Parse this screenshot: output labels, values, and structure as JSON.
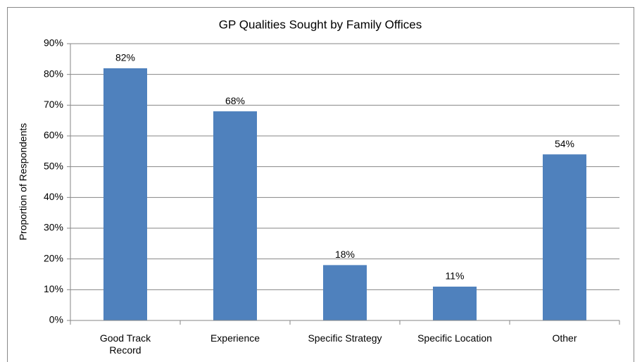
{
  "chart_data": {
    "type": "bar",
    "title": "GP Qualities Sought by Family Offices",
    "y_label": "Proportion of Respondents",
    "categories": [
      "Good Track Record",
      "Experience",
      "Specific Strategy",
      "Specific Location",
      "Other"
    ],
    "values": [
      82,
      68,
      18,
      11,
      54
    ],
    "value_labels": [
      "82%",
      "68%",
      "18%",
      "11%",
      "54%"
    ],
    "color": "#4f81bd",
    "ylim": [
      0,
      90
    ],
    "yticks": [
      {
        "value": 0,
        "label": "0%"
      },
      {
        "value": 10,
        "label": "10%"
      },
      {
        "value": 20,
        "label": "20%"
      },
      {
        "value": 30,
        "label": "30%"
      },
      {
        "value": 40,
        "label": "40%"
      },
      {
        "value": 50,
        "label": "50%"
      },
      {
        "value": 60,
        "label": "60%"
      },
      {
        "value": 70,
        "label": "70%"
      },
      {
        "value": 80,
        "label": "80%"
      },
      {
        "value": 90,
        "label": "90%"
      }
    ],
    "grid": true
  }
}
